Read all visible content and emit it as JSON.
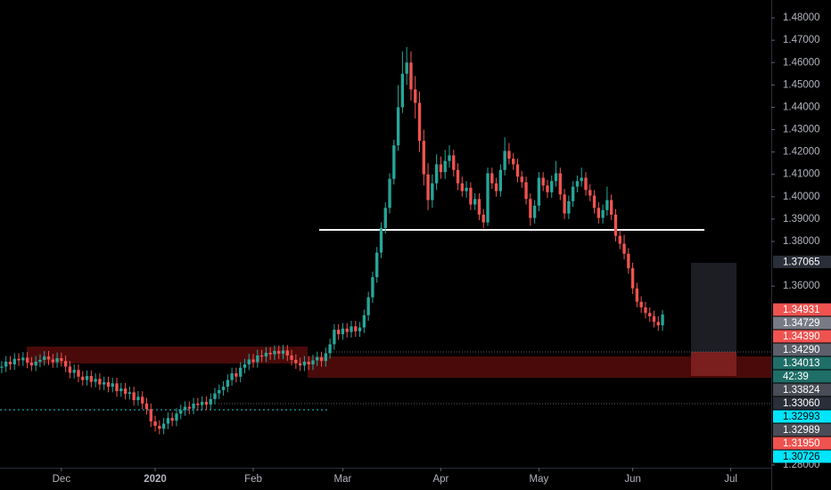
{
  "chart_data": {
    "type": "candlestick",
    "up_color": "#26a69a",
    "down_color": "#ef5350",
    "xlim": [
      -0.4,
      180.5
    ],
    "xticks": [
      {
        "value": 14,
        "label": "Dec"
      },
      {
        "value": 36,
        "label": "2020",
        "bold": true
      },
      {
        "value": 59,
        "label": "Feb"
      },
      {
        "value": 80,
        "label": "Mar"
      },
      {
        "value": 103,
        "label": "Apr"
      },
      {
        "value": 126,
        "label": "May"
      },
      {
        "value": 148,
        "label": "Jun"
      },
      {
        "value": 171,
        "label": "Jul"
      }
    ],
    "ylim": [
      1.2688,
      1.488
    ],
    "yticks": [
      {
        "value": 1.48,
        "label": "1.48000"
      },
      {
        "value": 1.47,
        "label": "1.47000"
      },
      {
        "value": 1.46,
        "label": "1.46000"
      },
      {
        "value": 1.45,
        "label": "1.45000"
      },
      {
        "value": 1.44,
        "label": "1.44000"
      },
      {
        "value": 1.43,
        "label": "1.43000"
      },
      {
        "value": 1.42,
        "label": "1.42000"
      },
      {
        "value": 1.41,
        "label": "1.41000"
      },
      {
        "value": 1.4,
        "label": "1.40000"
      },
      {
        "value": 1.39,
        "label": "1.39000"
      },
      {
        "value": 1.38,
        "label": "1.38000"
      },
      {
        "value": 1.36,
        "label": "1.36000"
      },
      {
        "value": 1.28,
        "label": "1.28000"
      }
    ],
    "open": [
      1.3235,
      1.324,
      1.3262,
      1.325,
      1.3275,
      1.3268,
      1.328,
      1.3258,
      1.3245,
      1.3262,
      1.327,
      1.3285,
      1.3272,
      1.326,
      1.3278,
      1.3265,
      1.324,
      1.3212,
      1.3225,
      1.3195,
      1.318,
      1.3198,
      1.3172,
      1.3185,
      1.316,
      1.317,
      1.315,
      1.3165,
      1.313,
      1.3142,
      1.3118,
      1.3125,
      1.309,
      1.3105,
      1.3075,
      1.305,
      1.2995,
      1.2975,
      1.2962,
      1.2985,
      1.301,
      1.2998,
      1.303,
      1.3045,
      1.306,
      1.3052,
      1.3075,
      1.3068,
      1.3082,
      1.307,
      1.3095,
      1.312,
      1.3135,
      1.315,
      1.318,
      1.321,
      1.3195,
      1.3235,
      1.325,
      1.3272,
      1.326,
      1.329,
      1.3285,
      1.3302,
      1.3295,
      1.331,
      1.3298,
      1.3312,
      1.329,
      1.327,
      1.3255,
      1.3245,
      1.3262,
      1.325,
      1.3268,
      1.3282,
      1.3265,
      1.33,
      1.334,
      1.3405,
      1.3385,
      1.341,
      1.3395,
      1.342,
      1.3398,
      1.3415,
      1.347,
      1.355,
      1.364,
      1.375,
      1.386,
      1.395,
      1.408,
      1.423,
      1.44,
      1.455,
      1.46,
      1.448,
      1.442,
      1.425,
      1.41,
      1.3985,
      1.406,
      1.4145,
      1.411,
      1.416,
      1.4185,
      1.412,
      1.406,
      1.4025,
      1.404,
      1.3965,
      1.399,
      1.392,
      1.3885,
      1.4105,
      1.406,
      1.4025,
      1.412,
      1.4205,
      1.417,
      1.4145,
      1.409,
      1.4065,
      1.399,
      1.3905,
      1.396,
      1.4085,
      1.405,
      1.402,
      1.407,
      1.4105,
      1.401,
      1.3925,
      1.398,
      1.4045,
      1.407,
      1.4085,
      1.403,
      1.4005,
      1.395,
      1.3905,
      1.394,
      1.3985,
      1.392,
      1.3825,
      1.379,
      1.3745,
      1.368,
      1.359,
      1.353,
      1.3505,
      1.348,
      1.3465,
      1.344,
      1.3425
    ],
    "high": [
      1.3265,
      1.3287,
      1.3287,
      1.33,
      1.33,
      1.3305,
      1.3305,
      1.3283,
      1.3287,
      1.3295,
      1.331,
      1.331,
      1.3297,
      1.3303,
      1.3303,
      1.329,
      1.3265,
      1.325,
      1.325,
      1.322,
      1.3223,
      1.3223,
      1.321,
      1.321,
      1.3195,
      1.3195,
      1.319,
      1.319,
      1.3167,
      1.3167,
      1.315,
      1.315,
      1.313,
      1.313,
      1.31,
      1.3075,
      1.302,
      1.3,
      1.301,
      1.3035,
      1.3035,
      1.3055,
      1.307,
      1.3085,
      1.3085,
      1.31,
      1.31,
      1.3107,
      1.3107,
      1.312,
      1.3145,
      1.316,
      1.3175,
      1.3205,
      1.3235,
      1.3235,
      1.326,
      1.3275,
      1.3297,
      1.3297,
      1.3315,
      1.3315,
      1.3327,
      1.3327,
      1.3335,
      1.3335,
      1.3337,
      1.3337,
      1.3315,
      1.3295,
      1.328,
      1.3287,
      1.3287,
      1.3293,
      1.3307,
      1.3307,
      1.3325,
      1.3365,
      1.343,
      1.343,
      1.3435,
      1.3435,
      1.3445,
      1.3445,
      1.344,
      1.3495,
      1.3575,
      1.3665,
      1.3775,
      1.3885,
      1.3975,
      1.4105,
      1.4255,
      1.45,
      1.465,
      1.467,
      1.465,
      1.454,
      1.447,
      1.43,
      1.415,
      1.41,
      1.419,
      1.418,
      1.421,
      1.423,
      1.421,
      1.415,
      1.409,
      1.407,
      1.4065,
      1.4015,
      1.4015,
      1.3945,
      1.413,
      1.413,
      1.4085,
      1.4145,
      1.4265,
      1.424,
      1.4195,
      1.417,
      1.4115,
      1.409,
      1.4015,
      1.3985,
      1.411,
      1.411,
      1.4075,
      1.4095,
      1.416,
      1.413,
      1.4035,
      1.4005,
      1.407,
      1.4095,
      1.413,
      1.411,
      1.4055,
      1.403,
      1.3975,
      1.3965,
      1.4045,
      1.401,
      1.3945,
      1.385,
      1.383,
      1.377,
      1.3705,
      1.3615,
      1.3555,
      1.353,
      1.3505,
      1.349,
      1.3465,
      1.3493
    ],
    "low": [
      1.321,
      1.3215,
      1.3225,
      1.3225,
      1.3243,
      1.3243,
      1.3233,
      1.322,
      1.322,
      1.3237,
      1.3245,
      1.3247,
      1.3235,
      1.3235,
      1.324,
      1.3215,
      1.3187,
      1.3187,
      1.317,
      1.3155,
      1.3155,
      1.3147,
      1.3147,
      1.3135,
      1.3135,
      1.3125,
      1.3125,
      1.3105,
      1.3105,
      1.3093,
      1.3093,
      1.3065,
      1.3065,
      1.305,
      1.3025,
      1.297,
      1.295,
      1.2937,
      1.2937,
      1.296,
      1.2973,
      1.2973,
      1.3005,
      1.302,
      1.3027,
      1.3027,
      1.3043,
      1.3043,
      1.3045,
      1.3045,
      1.307,
      1.3095,
      1.311,
      1.3125,
      1.3155,
      1.317,
      1.317,
      1.321,
      1.3225,
      1.3235,
      1.3235,
      1.326,
      1.326,
      1.327,
      1.327,
      1.3273,
      1.3273,
      1.3265,
      1.3245,
      1.323,
      1.322,
      1.322,
      1.3225,
      1.3225,
      1.3243,
      1.324,
      1.324,
      1.3275,
      1.3315,
      1.336,
      1.336,
      1.337,
      1.337,
      1.3373,
      1.3373,
      1.339,
      1.3445,
      1.3525,
      1.3615,
      1.3725,
      1.3835,
      1.3925,
      1.4055,
      1.4205,
      1.4375,
      1.45,
      1.443,
      1.435,
      1.42,
      1.405,
      1.394,
      1.395,
      1.403,
      1.408,
      1.408,
      1.413,
      1.409,
      1.403,
      1.4,
      1.3995,
      1.394,
      1.394,
      1.3895,
      1.386,
      1.387,
      1.4035,
      1.4,
      1.4,
      1.4095,
      1.4145,
      1.412,
      1.4065,
      1.404,
      1.3965,
      1.387,
      1.388,
      1.3935,
      1.4025,
      1.3995,
      1.3995,
      1.4045,
      1.3985,
      1.39,
      1.39,
      1.3955,
      1.402,
      1.4045,
      1.4005,
      1.398,
      1.3925,
      1.388,
      1.388,
      1.3915,
      1.3895,
      1.38,
      1.3765,
      1.372,
      1.3655,
      1.3565,
      1.3505,
      1.348,
      1.3455,
      1.344,
      1.3415,
      1.34,
      1.34
    ],
    "close": [
      1.324,
      1.3262,
      1.325,
      1.3275,
      1.3268,
      1.328,
      1.3258,
      1.3245,
      1.3262,
      1.327,
      1.3285,
      1.3272,
      1.326,
      1.3278,
      1.3265,
      1.324,
      1.3212,
      1.3225,
      1.3195,
      1.318,
      1.3198,
      1.3172,
      1.3185,
      1.316,
      1.317,
      1.315,
      1.3165,
      1.313,
      1.3142,
      1.3118,
      1.3125,
      1.309,
      1.3105,
      1.3075,
      1.305,
      1.2995,
      1.2975,
      1.2962,
      1.2985,
      1.301,
      1.2998,
      1.303,
      1.3045,
      1.306,
      1.3052,
      1.3075,
      1.3068,
      1.3082,
      1.307,
      1.3095,
      1.312,
      1.3135,
      1.315,
      1.318,
      1.321,
      1.3195,
      1.3235,
      1.325,
      1.3272,
      1.326,
      1.329,
      1.3285,
      1.3302,
      1.3295,
      1.331,
      1.3298,
      1.3312,
      1.329,
      1.327,
      1.3255,
      1.3245,
      1.3262,
      1.325,
      1.3268,
      1.3282,
      1.3265,
      1.33,
      1.334,
      1.3405,
      1.3385,
      1.341,
      1.3395,
      1.342,
      1.3398,
      1.3415,
      1.347,
      1.355,
      1.364,
      1.375,
      1.386,
      1.395,
      1.408,
      1.423,
      1.44,
      1.455,
      1.46,
      1.448,
      1.442,
      1.425,
      1.41,
      1.3985,
      1.406,
      1.4145,
      1.411,
      1.416,
      1.4185,
      1.412,
      1.406,
      1.4025,
      1.404,
      1.3965,
      1.399,
      1.392,
      1.3885,
      1.4105,
      1.406,
      1.4025,
      1.412,
      1.4205,
      1.417,
      1.4145,
      1.409,
      1.4065,
      1.399,
      1.3905,
      1.396,
      1.4085,
      1.405,
      1.402,
      1.407,
      1.4105,
      1.401,
      1.3925,
      1.398,
      1.4045,
      1.407,
      1.4085,
      1.403,
      1.4005,
      1.395,
      1.3905,
      1.394,
      1.3985,
      1.392,
      1.3825,
      1.379,
      1.3745,
      1.368,
      1.359,
      1.353,
      1.3505,
      1.348,
      1.3465,
      1.344,
      1.3425,
      1.3473
    ],
    "price_tags": [
      {
        "value": 1.37065,
        "label": "1.37065",
        "color": "#2a2e39",
        "text_color": "#ffffff"
      },
      {
        "value": 1.34931,
        "label": "1.34931",
        "color": "#ef5350",
        "text_color": "#ffffff"
      },
      {
        "value": 1.34729,
        "label": "1.34729",
        "color": "#787b86",
        "text_color": "#ffffff"
      },
      {
        "value": 1.3439,
        "label": "1.34390",
        "color": "#ef5350",
        "text_color": "#ffffff"
      },
      {
        "value": 1.3429,
        "label": "1.34290",
        "color": "#5d606b",
        "text_color": "#ffffff"
      },
      {
        "value": 1.34013,
        "label": "1.34013",
        "color": "#1f6f68",
        "text_color": "#ffffff",
        "countdown": "42:39"
      },
      {
        "value": 1.33824,
        "label": "1.33824",
        "color": "#4a4d57",
        "text_color": "#ffffff"
      },
      {
        "value": 1.3306,
        "label": "1.33060",
        "color": "#2a2e39",
        "text_color": "#ffffff"
      },
      {
        "value": 1.32993,
        "label": "1.32993",
        "color": "#00e5ff",
        "text_color": "#000000"
      },
      {
        "value": 1.32989,
        "label": "1.32989",
        "color": "#4a4d57",
        "text_color": "#ffffff"
      },
      {
        "value": 1.3195,
        "label": "1.31950",
        "color": "#ef5350",
        "text_color": "#ffffff"
      },
      {
        "value": 1.30726,
        "label": "1.30726",
        "color": "#00e5ff",
        "text_color": "#000000"
      }
    ]
  }
}
